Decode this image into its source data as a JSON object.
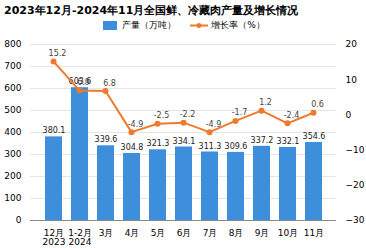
{
  "chart_data": {
    "type": "bar",
    "title": "2023年12月-2024年11月全国鲜、冷藏肉产量及增长情况",
    "categories": [
      "12月\n2023",
      "1-2月\n2024",
      "3月",
      "4月",
      "5月",
      "6月",
      "7月",
      "8月",
      "9月",
      "10月",
      "11月"
    ],
    "series": [
      {
        "name": "产量（万吨）",
        "type": "bar",
        "color": "#3d8fdb",
        "values": [
          380.1,
          603.6,
          339.6,
          304.8,
          321.3,
          334.1,
          311.3,
          309.6,
          337.2,
          332.1,
          354.6
        ]
      },
      {
        "name": "增长率（%）",
        "type": "line",
        "color": "#f07a2c",
        "marker": "circle",
        "axis": "y2",
        "values": [
          15.2,
          6.9,
          6.8,
          -4.9,
          -2.5,
          -2.2,
          -4.9,
          -1.7,
          1.2,
          -2.4,
          0.6
        ]
      }
    ],
    "ylim": [
      0,
      800
    ],
    "yticks": [
      0,
      100,
      200,
      300,
      400,
      500,
      600,
      700,
      800
    ],
    "y2lim": [
      -30,
      20
    ],
    "y2ticks": [
      -30,
      -20,
      -10,
      0,
      10,
      20
    ],
    "grid": true,
    "legend": "top",
    "data_labels": true
  }
}
